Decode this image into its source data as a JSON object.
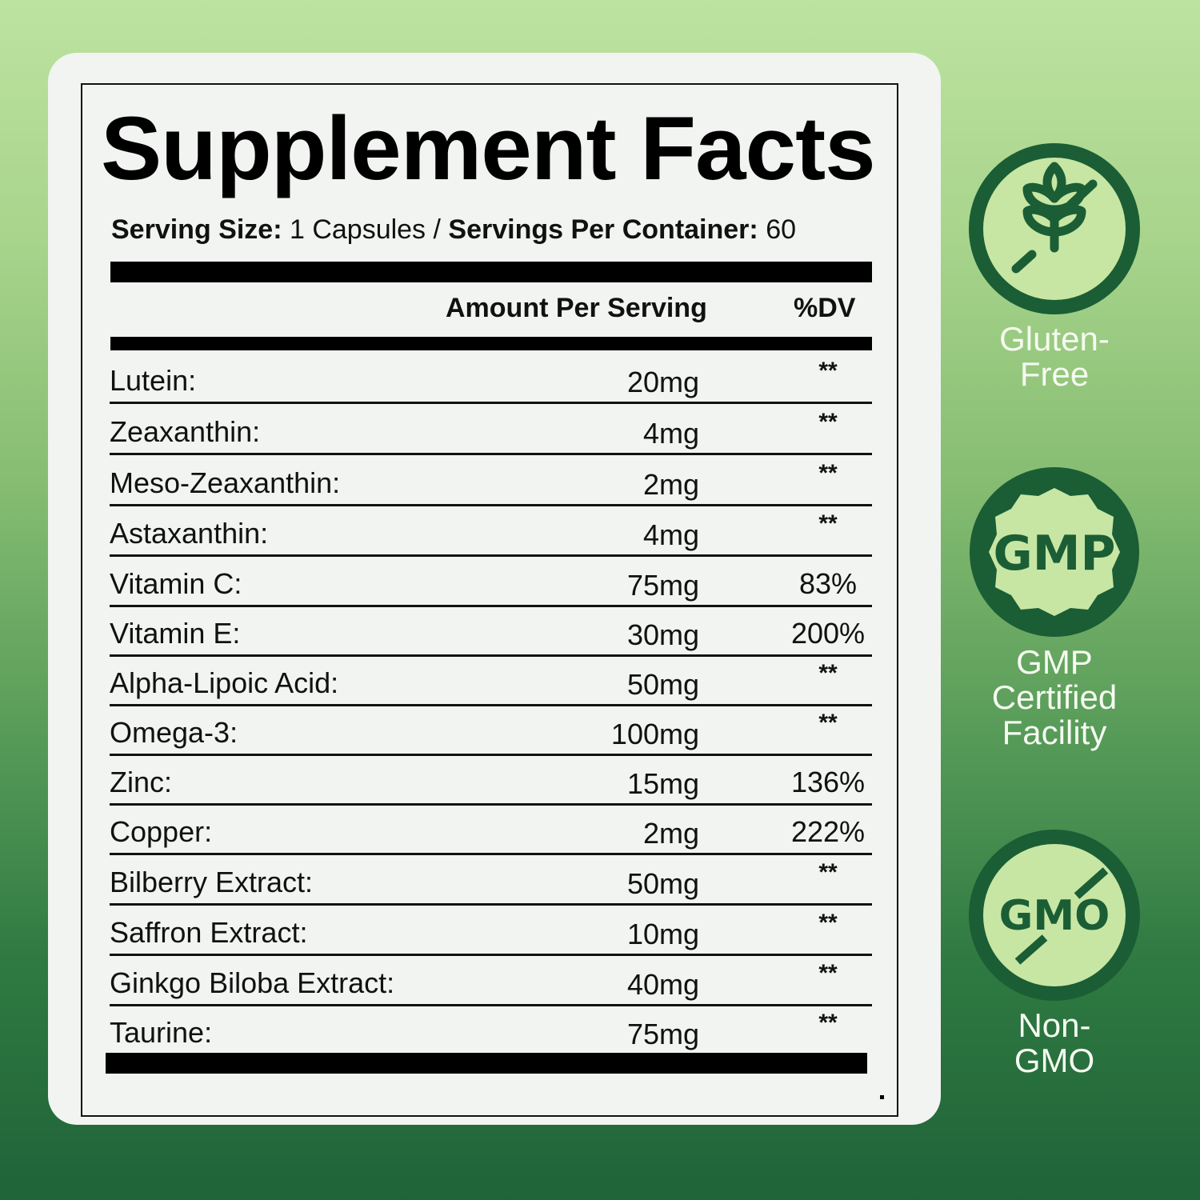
{
  "label": {
    "title": "Supplement Facts",
    "serving_size_label": "Serving Size:",
    "serving_size_value": " 1 Capsules / ",
    "servings_per_container_label": "Servings Per Container:",
    "servings_per_container_value": " 60",
    "columns": {
      "amount": "Amount Per Serving",
      "dv": "%DV"
    },
    "rows": [
      {
        "name": "Lutein:",
        "amount": "20mg",
        "dv": "**"
      },
      {
        "name": "Zeaxanthin:",
        "amount": "4mg",
        "dv": "**"
      },
      {
        "name": "Meso-Zeaxanthin:",
        "amount": "2mg",
        "dv": "**"
      },
      {
        "name": "Astaxanthin:",
        "amount": "4mg",
        "dv": "**"
      },
      {
        "name": "Vitamin C:",
        "amount": "75mg",
        "dv": "83%"
      },
      {
        "name": "Vitamin E:",
        "amount": "30mg",
        "dv": "200%"
      },
      {
        "name": "Alpha-Lipoic Acid:",
        "amount": "50mg",
        "dv": "**"
      },
      {
        "name": "Omega-3:",
        "amount": "100mg",
        "dv": "**"
      },
      {
        "name": "Zinc:",
        "amount": "15mg",
        "dv": "136%"
      },
      {
        "name": "Copper:",
        "amount": "2mg",
        "dv": "222%"
      },
      {
        "name": "Bilberry Extract:",
        "amount": "50mg",
        "dv": "**"
      },
      {
        "name": "Saffron Extract:",
        "amount": "10mg",
        "dv": "**"
      },
      {
        "name": "Ginkgo Biloba Extract:",
        "amount": "40mg",
        "dv": "**"
      },
      {
        "name": "Taurine:",
        "amount": "75mg",
        "dv": "**"
      }
    ]
  },
  "badges": [
    {
      "icon": "no-wheat-icon",
      "line1": "Gluten-",
      "line2": "Free"
    },
    {
      "icon": "gmp-seal-icon",
      "seal_text": "GMP",
      "line1": "GMP",
      "line2": "Certified",
      "line3": "Facility"
    },
    {
      "icon": "no-gmo-icon",
      "seal_text": "GMO",
      "line1": "Non-",
      "line2": "GMO"
    }
  ],
  "colors": {
    "badge_dark": "#1b5e35",
    "badge_light": "#c7e6a4",
    "caption": "#f5fbf0",
    "card": "#f1f4f1"
  }
}
